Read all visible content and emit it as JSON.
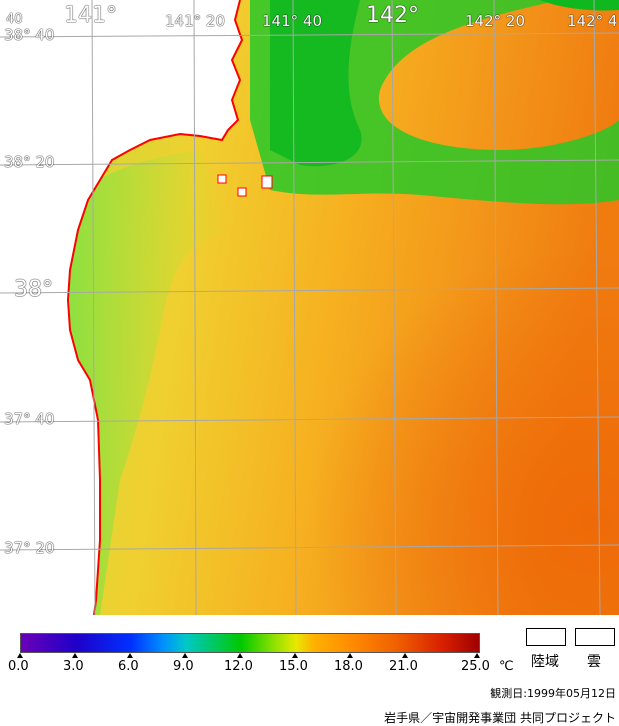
{
  "map": {
    "lon_labels": [
      {
        "text": "141°",
        "major": true
      },
      {
        "text": "141° 20",
        "major": false
      },
      {
        "text": "141° 40",
        "major": false
      },
      {
        "text": "142°",
        "major": true
      },
      {
        "text": "142° 20",
        "major": false
      },
      {
        "text": "142° 4",
        "major": false
      }
    ],
    "lat_labels": [
      {
        "text": "38° 40",
        "major": false
      },
      {
        "text": "38° 20",
        "major": false
      },
      {
        "text": "38°",
        "major": true
      },
      {
        "text": "37° 40",
        "major": false
      },
      {
        "text": "37° 20",
        "major": false
      }
    ],
    "corner_label": "40",
    "coast_color": "#ff0000",
    "land_color": "#ffffff",
    "grid_color": "#a8a8a8"
  },
  "colorbar": {
    "ticks": [
      "0.0",
      "3.0",
      "6.0",
      "9.0",
      "12.0",
      "15.0",
      "18.0",
      "21.0",
      "25.0"
    ],
    "unit": "℃"
  },
  "legend": {
    "land_label": "陸域",
    "cloud_label": "雲"
  },
  "observation_date": "観測日:1999年05月12日",
  "credit": "岩手県／宇宙開発事業団 共同プロジェクト"
}
